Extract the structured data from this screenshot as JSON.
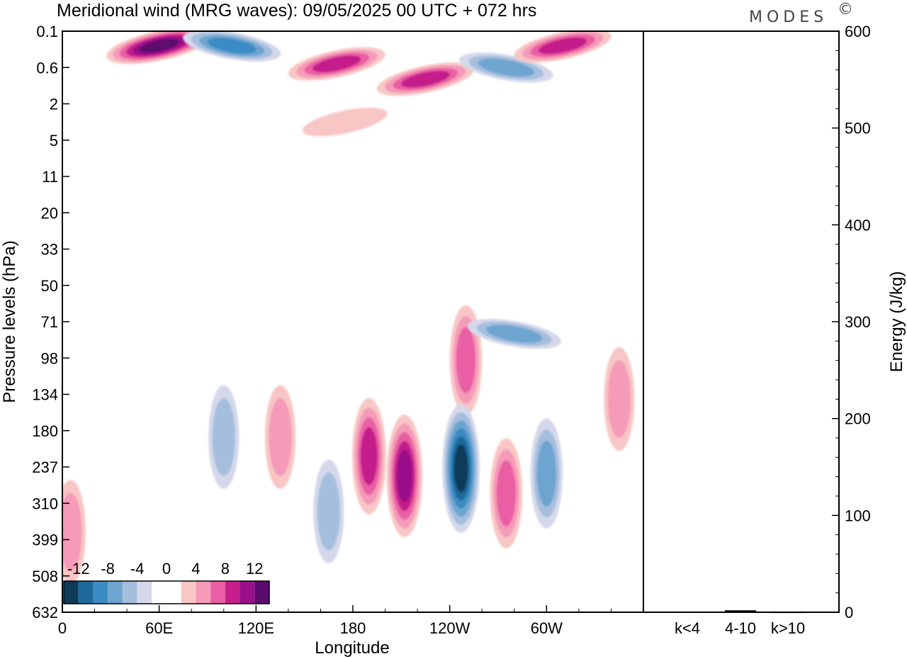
{
  "header": {
    "title": "Meridional wind (MRG waves):  09/05/2025  00 UTC  + 072 hrs",
    "brand": "MODES",
    "brand_mark": "©"
  },
  "chart_data": [
    {
      "type": "heatmap",
      "title": "Meridional wind (MRG waves):  09/05/2025  00 UTC  + 072 hrs",
      "xlabel": "Longitude",
      "ylabel": "Pressure levels (hPa)",
      "x_ticks": [
        "0",
        "60E",
        "120E",
        "180",
        "120W",
        "60W"
      ],
      "y_ticks": [
        "0.1",
        "0.6",
        "2",
        "5",
        "11",
        "20",
        "33",
        "50",
        "71",
        "98",
        "134",
        "180",
        "237",
        "310",
        "399",
        "508",
        "632"
      ],
      "colorbar": {
        "labels": [
          "-12",
          "-8",
          "-4",
          "0",
          "4",
          "8",
          "12"
        ],
        "levels": [
          -14,
          -12,
          -10,
          -8,
          -6,
          -4,
          -2,
          2,
          4,
          6,
          8,
          10,
          12,
          14
        ],
        "colors": [
          "#0e3a5a",
          "#1d6a9a",
          "#3b8cc4",
          "#6ea4d0",
          "#a6bedd",
          "#d4d8ea",
          "#ffffff",
          "#ffffff",
          "#f8c6c4",
          "#f59ab8",
          "#ea5fa3",
          "#c41f8a",
          "#991088",
          "#5b0b6e"
        ]
      },
      "features": [
        {
          "lon": 60,
          "lev": 0.3,
          "value": 14
        },
        {
          "lon": 105,
          "lev": 0.3,
          "value": -10
        },
        {
          "lon": 170,
          "lev": 0.55,
          "value": 10
        },
        {
          "lon": 225,
          "lev": 1.05,
          "value": 10
        },
        {
          "lon": 275,
          "lev": 0.6,
          "value": -8
        },
        {
          "lon": 310,
          "lev": 0.3,
          "value": 10
        },
        {
          "lon": 175,
          "lev": 3.5,
          "value": 4
        },
        {
          "lon": 250,
          "lev": 100,
          "value": 8
        },
        {
          "lon": 190,
          "lev": 220,
          "value": 10
        },
        {
          "lon": 212,
          "lev": 255,
          "value": 12
        },
        {
          "lon": 247,
          "lev": 240,
          "value": -14
        },
        {
          "lon": 275,
          "lev": 290,
          "value": 8
        },
        {
          "lon": 300,
          "lev": 250,
          "value": -8
        },
        {
          "lon": 100,
          "lev": 190,
          "value": -6
        },
        {
          "lon": 135,
          "lev": 190,
          "value": 6
        },
        {
          "lon": 165,
          "lev": 330,
          "value": -6
        },
        {
          "lon": 5,
          "lev": 380,
          "value": 6
        },
        {
          "lon": 280,
          "lev": 80,
          "value": -8
        },
        {
          "lon": 345,
          "lev": 140,
          "value": 6
        }
      ]
    },
    {
      "type": "bar",
      "categories": [
        "k<4",
        "4-10",
        "k>10"
      ],
      "values": [
        0.5,
        2,
        0.3
      ],
      "ylabel": "Energy (J/kg)",
      "ylim": [
        0,
        600
      ],
      "y_ticks": [
        "0",
        "100",
        "200",
        "300",
        "400",
        "500",
        "600"
      ]
    }
  ]
}
